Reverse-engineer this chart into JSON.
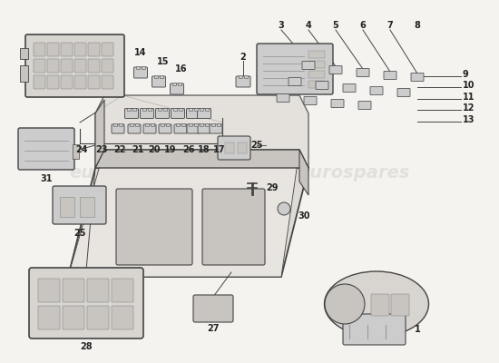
{
  "bg_color": "#f5f3f0",
  "line_color": "#444444",
  "text_color": "#222222",
  "watermark_color": "#dbd8d4",
  "fig_w": 5.5,
  "fig_h": 4.0,
  "dpi": 100,
  "part_fill": "#d8d5d0",
  "part_fill2": "#c8c5c0",
  "part_fill3": "#e8e5e0",
  "connector_fill": "#cccccc",
  "connector_edge": "#555555"
}
